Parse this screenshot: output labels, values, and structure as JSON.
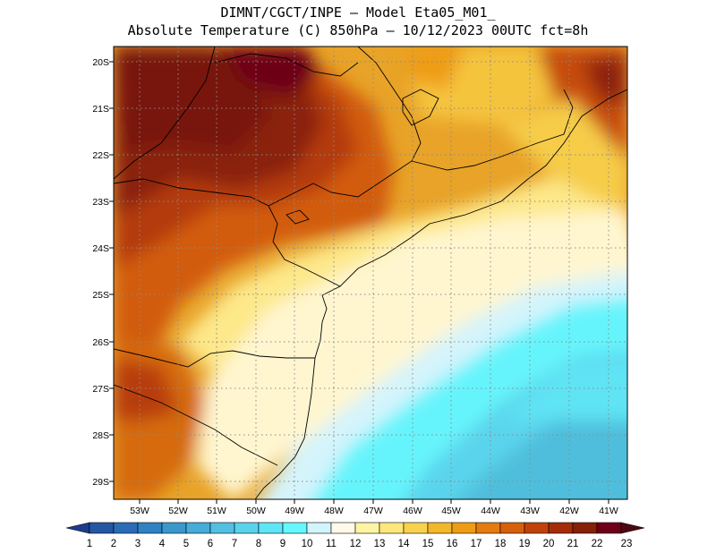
{
  "header": {
    "line1": "DIMNT/CGCT/INPE –  Model Eta05_M01_",
    "line2": "Absolute Temperature (C) 850hPa –  10/12/2023 00UTC fct=8h"
  },
  "map": {
    "lat_labels": [
      "20S",
      "21S",
      "22S",
      "23S",
      "24S",
      "25S",
      "26S",
      "27S",
      "28S",
      "29S"
    ],
    "lon_labels": [
      "53W",
      "52W",
      "51W",
      "50W",
      "49W",
      "48W",
      "47W",
      "46W",
      "45W",
      "44W",
      "43W",
      "42W",
      "41W"
    ]
  },
  "colorbar": {
    "labels": [
      "1",
      "2",
      "3",
      "4",
      "5",
      "6",
      "7",
      "8",
      "9",
      "10",
      "11",
      "12",
      "13",
      "14",
      "15",
      "16",
      "17",
      "18",
      "19",
      "20",
      "21",
      "22",
      "23"
    ],
    "colors": [
      "#1e3c8c",
      "#2456a4",
      "#2a6db6",
      "#3082c2",
      "#3a98cc",
      "#46acd8",
      "#52c0e2",
      "#5ad2ec",
      "#5ee6f6",
      "#64f8fe",
      "#d2f4fc",
      "#fffae8",
      "#fff4a4",
      "#fde77a",
      "#f8d24c",
      "#f2b82a",
      "#ee9c16",
      "#e47c10",
      "#d6600c",
      "#c0420a",
      "#a42c08",
      "#862008",
      "#6e0018",
      "#4c0810"
    ]
  }
}
